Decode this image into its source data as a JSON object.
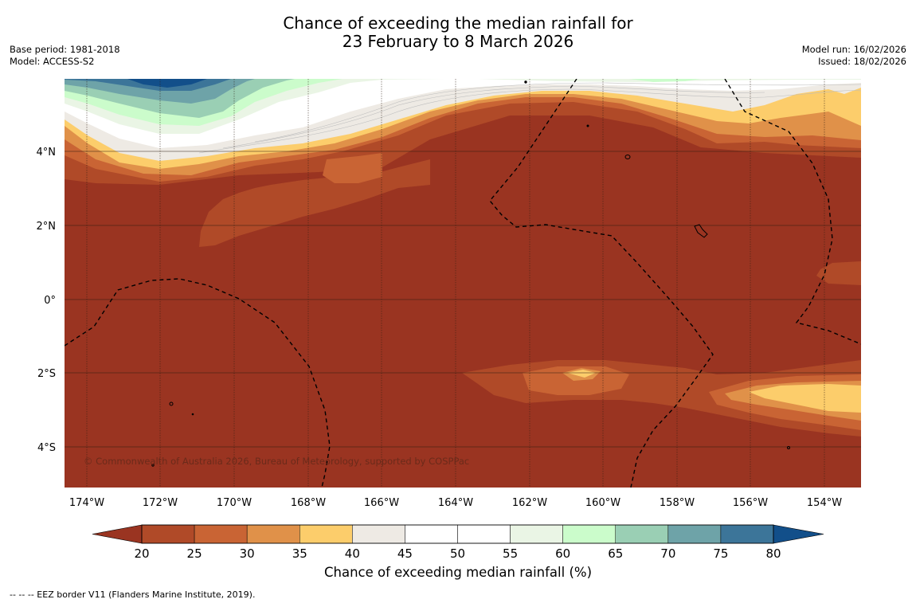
{
  "title": {
    "line1": "Chance of exceeding the median rainfall for",
    "line2": "23 February to 8 March 2026"
  },
  "meta_left": {
    "base_period": "Base period: 1981-2018",
    "model": "Model: ACCESS-S2"
  },
  "meta_right": {
    "model_run": "Model run: 16/02/2026",
    "issued": "Issued: 18/02/2026"
  },
  "axes": {
    "lat_labels": [
      "4°N",
      "2°N",
      "0°",
      "2°S",
      "4°S"
    ],
    "lon_labels": [
      "174°W",
      "172°W",
      "170°W",
      "168°W",
      "166°W",
      "164°W",
      "162°W",
      "160°W",
      "158°W",
      "156°W",
      "154°W"
    ]
  },
  "copyright": "© Commonwealth of Australia 2026, Bureau of Meteorology, supported by COSPPac",
  "colorbar": {
    "title": "Chance of exceeding median rainfall (%)",
    "ticks": [
      "20",
      "25",
      "30",
      "35",
      "40",
      "45",
      "50",
      "55",
      "60",
      "65",
      "70",
      "75",
      "80"
    ],
    "colors": {
      "under": "#9a3421",
      "b20_25": "#b04a28",
      "b25_30": "#c96434",
      "b30_35": "#e09149",
      "b35_40": "#fccd6b",
      "b40_45": "#eeeae4",
      "b45_50": "#ffffff",
      "b50_55": "#ffffff",
      "b55_60": "#eaf5e5",
      "b60_65": "#cbfccb",
      "b65_70": "#9acfb4",
      "b70_75": "#6ea3a8",
      "b75_80": "#3c7599",
      "over": "#124f8a"
    }
  },
  "footnote": "--  --  -- EEZ border V11 (Flanders Marine Institute, 2019)."
}
